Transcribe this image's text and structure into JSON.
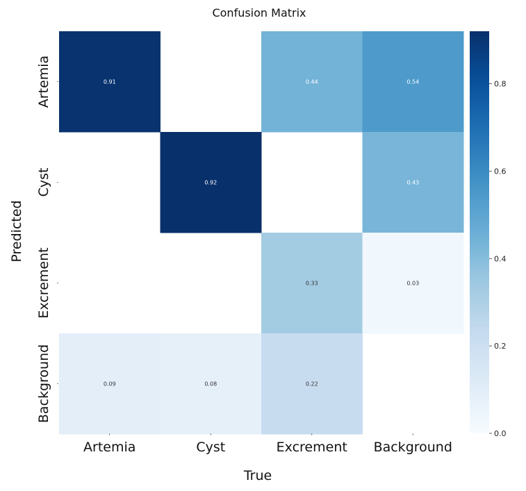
{
  "chart_data": {
    "type": "heatmap",
    "title": "Confusion Matrix",
    "xlabel": "True",
    "ylabel": "Predicted",
    "columns": [
      "Artemia",
      "Cyst",
      "Excrement",
      "Background"
    ],
    "rows": [
      "Artemia",
      "Cyst",
      "Excrement",
      "Background"
    ],
    "values": [
      [
        0.91,
        null,
        0.44,
        0.54
      ],
      [
        null,
        0.92,
        null,
        0.43
      ],
      [
        null,
        null,
        0.33,
        0.03
      ],
      [
        0.09,
        0.08,
        0.22,
        null
      ]
    ],
    "value_labels": [
      [
        "0.91",
        "",
        "0.44",
        "0.54"
      ],
      [
        "",
        "0.92",
        "",
        "0.43"
      ],
      [
        "",
        "",
        "0.33",
        "0.03"
      ],
      [
        "0.09",
        "0.08",
        "0.22",
        ""
      ]
    ],
    "colorbar": {
      "range": [
        0.0,
        0.92
      ],
      "ticks": [
        0.0,
        0.2,
        0.4,
        0.6,
        0.8
      ],
      "tick_labels": [
        "0.0",
        "0.2",
        "0.4",
        "0.6",
        "0.8"
      ],
      "colormap": "Blues"
    },
    "colors": {
      "low": "#f7fbff",
      "high": "#08306b"
    }
  }
}
